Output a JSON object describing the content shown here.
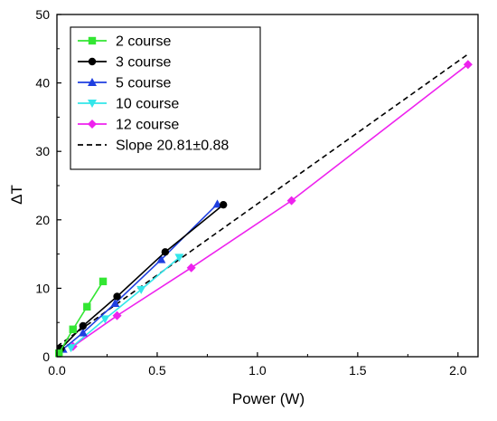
{
  "chart_data": {
    "type": "line",
    "title": "",
    "xlabel": "Power (W)",
    "ylabel": "ΔT",
    "xlim": [
      0,
      2.1
    ],
    "ylim": [
      0,
      50
    ],
    "xticks": [
      0.0,
      0.5,
      1.0,
      1.5,
      2.0
    ],
    "xtick_labels": [
      "0.0",
      "0.5",
      "1.0",
      "1.5",
      "2.0"
    ],
    "yticks": [
      0,
      10,
      20,
      30,
      40,
      50
    ],
    "ytick_labels": [
      "0",
      "10",
      "20",
      "30",
      "40",
      "50"
    ],
    "grid": false,
    "legend_position": "top-left",
    "series": [
      {
        "name": "2 course",
        "color": "#33e633",
        "marker": "square",
        "x": [
          0.01,
          0.08,
          0.15,
          0.23
        ],
        "y": [
          0.5,
          4.0,
          7.3,
          11.0
        ]
      },
      {
        "name": "3 course",
        "color": "#000000",
        "marker": "circle",
        "x": [
          0.02,
          0.13,
          0.3,
          0.54,
          0.83
        ],
        "y": [
          1.2,
          4.5,
          8.8,
          15.3,
          22.2
        ]
      },
      {
        "name": "5 course",
        "color": "#1f3fe0",
        "marker": "triangle-up",
        "x": [
          0.03,
          0.13,
          0.29,
          0.52,
          0.8
        ],
        "y": [
          1.1,
          3.5,
          7.8,
          14.2,
          22.3
        ]
      },
      {
        "name": "10 course",
        "color": "#33e6ea",
        "marker": "triangle-down",
        "x": [
          0.07,
          0.24,
          0.42,
          0.61
        ],
        "y": [
          1.3,
          5.5,
          9.8,
          14.5
        ]
      },
      {
        "name": "12 course",
        "color": "#ee22ee",
        "marker": "diamond",
        "x": [
          0.08,
          0.3,
          0.67,
          1.17,
          2.05
        ],
        "y": [
          1.5,
          6.0,
          13.0,
          22.8,
          42.7
        ]
      }
    ],
    "fit_line": {
      "name": "Slope 20.81±0.88",
      "color": "#000000",
      "style": "dashed",
      "x": [
        0.0,
        2.05
      ],
      "y": [
        1.5,
        44.2
      ]
    }
  }
}
